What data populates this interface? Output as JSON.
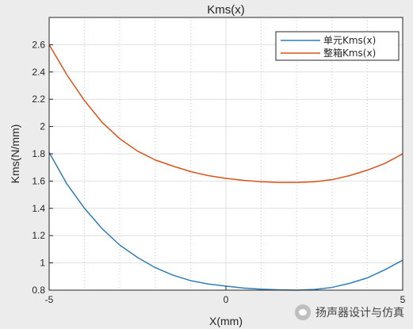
{
  "chart_data": {
    "type": "line",
    "title": "Kms(x)",
    "xlabel": "X(mm)",
    "ylabel": "Kms(N/mm)",
    "xlim": [
      -5,
      5
    ],
    "ylim": [
      0.8,
      2.8
    ],
    "xticks": [
      -5,
      0,
      5
    ],
    "yticks": [
      0.8,
      1,
      1.2,
      1.4,
      1.6,
      1.8,
      2,
      2.2,
      2.4,
      2.6
    ],
    "xticks_minor": [
      -4,
      -3,
      -2,
      -1,
      1,
      2,
      3,
      4
    ],
    "grid": true,
    "legend_position": "top-right",
    "series": [
      {
        "name": "单元Kms(x)",
        "color": "#2f7dbb",
        "x": [
          -5,
          -4.5,
          -4,
          -3.5,
          -3,
          -2.5,
          -2,
          -1.5,
          -1,
          -0.5,
          0,
          0.5,
          1,
          1.5,
          2,
          2.5,
          3,
          3.5,
          4,
          4.5,
          5
        ],
        "y": [
          1.81,
          1.58,
          1.4,
          1.25,
          1.13,
          1.04,
          0.965,
          0.91,
          0.87,
          0.845,
          0.83,
          0.815,
          0.807,
          0.802,
          0.8,
          0.805,
          0.82,
          0.85,
          0.89,
          0.95,
          1.02
        ]
      },
      {
        "name": "整箱Kms(x)",
        "color": "#d95319",
        "x": [
          -5,
          -4.5,
          -4,
          -3.5,
          -3,
          -2.5,
          -2,
          -1.5,
          -1,
          -0.5,
          0,
          0.5,
          1,
          1.5,
          2,
          2.5,
          3,
          3.5,
          4,
          4.5,
          5
        ],
        "y": [
          2.6,
          2.38,
          2.19,
          2.03,
          1.91,
          1.82,
          1.755,
          1.71,
          1.67,
          1.64,
          1.62,
          1.605,
          1.595,
          1.59,
          1.59,
          1.595,
          1.61,
          1.64,
          1.68,
          1.73,
          1.8
        ]
      }
    ]
  },
  "watermark": {
    "text": "扬声器设计与仿真",
    "icon": "wechat-icon"
  }
}
